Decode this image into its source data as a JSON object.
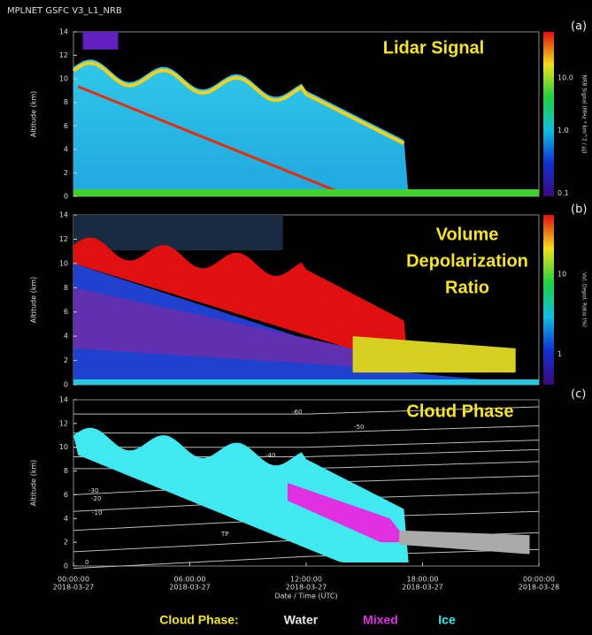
{
  "header": "MPLNET GSFC V3_L1_NRB",
  "panels": [
    {
      "tag": "(a)",
      "title": [
        "Lidar Signal"
      ],
      "y_label": "Altitude (km)",
      "y_ticks": [
        "0",
        "2",
        "4",
        "6",
        "8",
        "10",
        "12",
        "14"
      ],
      "colorbar_label": "NRB Signal (MHz * km^2 / μJ)",
      "colorbar_ticks": [
        "0.1",
        "1.0",
        "10.0"
      ]
    },
    {
      "tag": "(b)",
      "title": [
        "Volume",
        "Depolarization",
        "Ratio"
      ],
      "y_label": "Altitude (km)",
      "y_ticks": [
        "0",
        "2",
        "4",
        "6",
        "8",
        "10",
        "12",
        "14"
      ],
      "colorbar_label": "Vol. Depol. Ratio (%)",
      "colorbar_ticks": [
        "1",
        "10"
      ]
    },
    {
      "tag": "(c)",
      "title": [
        "Cloud Phase"
      ],
      "y_label": "Altitude (km)",
      "y_ticks": [
        "0",
        "2",
        "4",
        "6",
        "8",
        "10",
        "12",
        "14"
      ],
      "contour_labels": [
        "-60",
        "-50",
        "-40",
        "-30",
        "-20",
        "-10",
        "TP",
        "0"
      ]
    }
  ],
  "x_axis": {
    "ticks": [
      [
        "00:00:00",
        "2018-03-27"
      ],
      [
        "06:00:00",
        "2018-03-27"
      ],
      [
        "12:00:00",
        "2018-03-27"
      ],
      [
        "18:00:00",
        "2018-03-27"
      ],
      [
        "00:00:00",
        "2018-03-28"
      ]
    ],
    "label": "Date / Time (UTC)"
  },
  "legend": {
    "title": "Cloud Phase:",
    "items": [
      "Water",
      "Mixed",
      "Ice"
    ]
  }
}
